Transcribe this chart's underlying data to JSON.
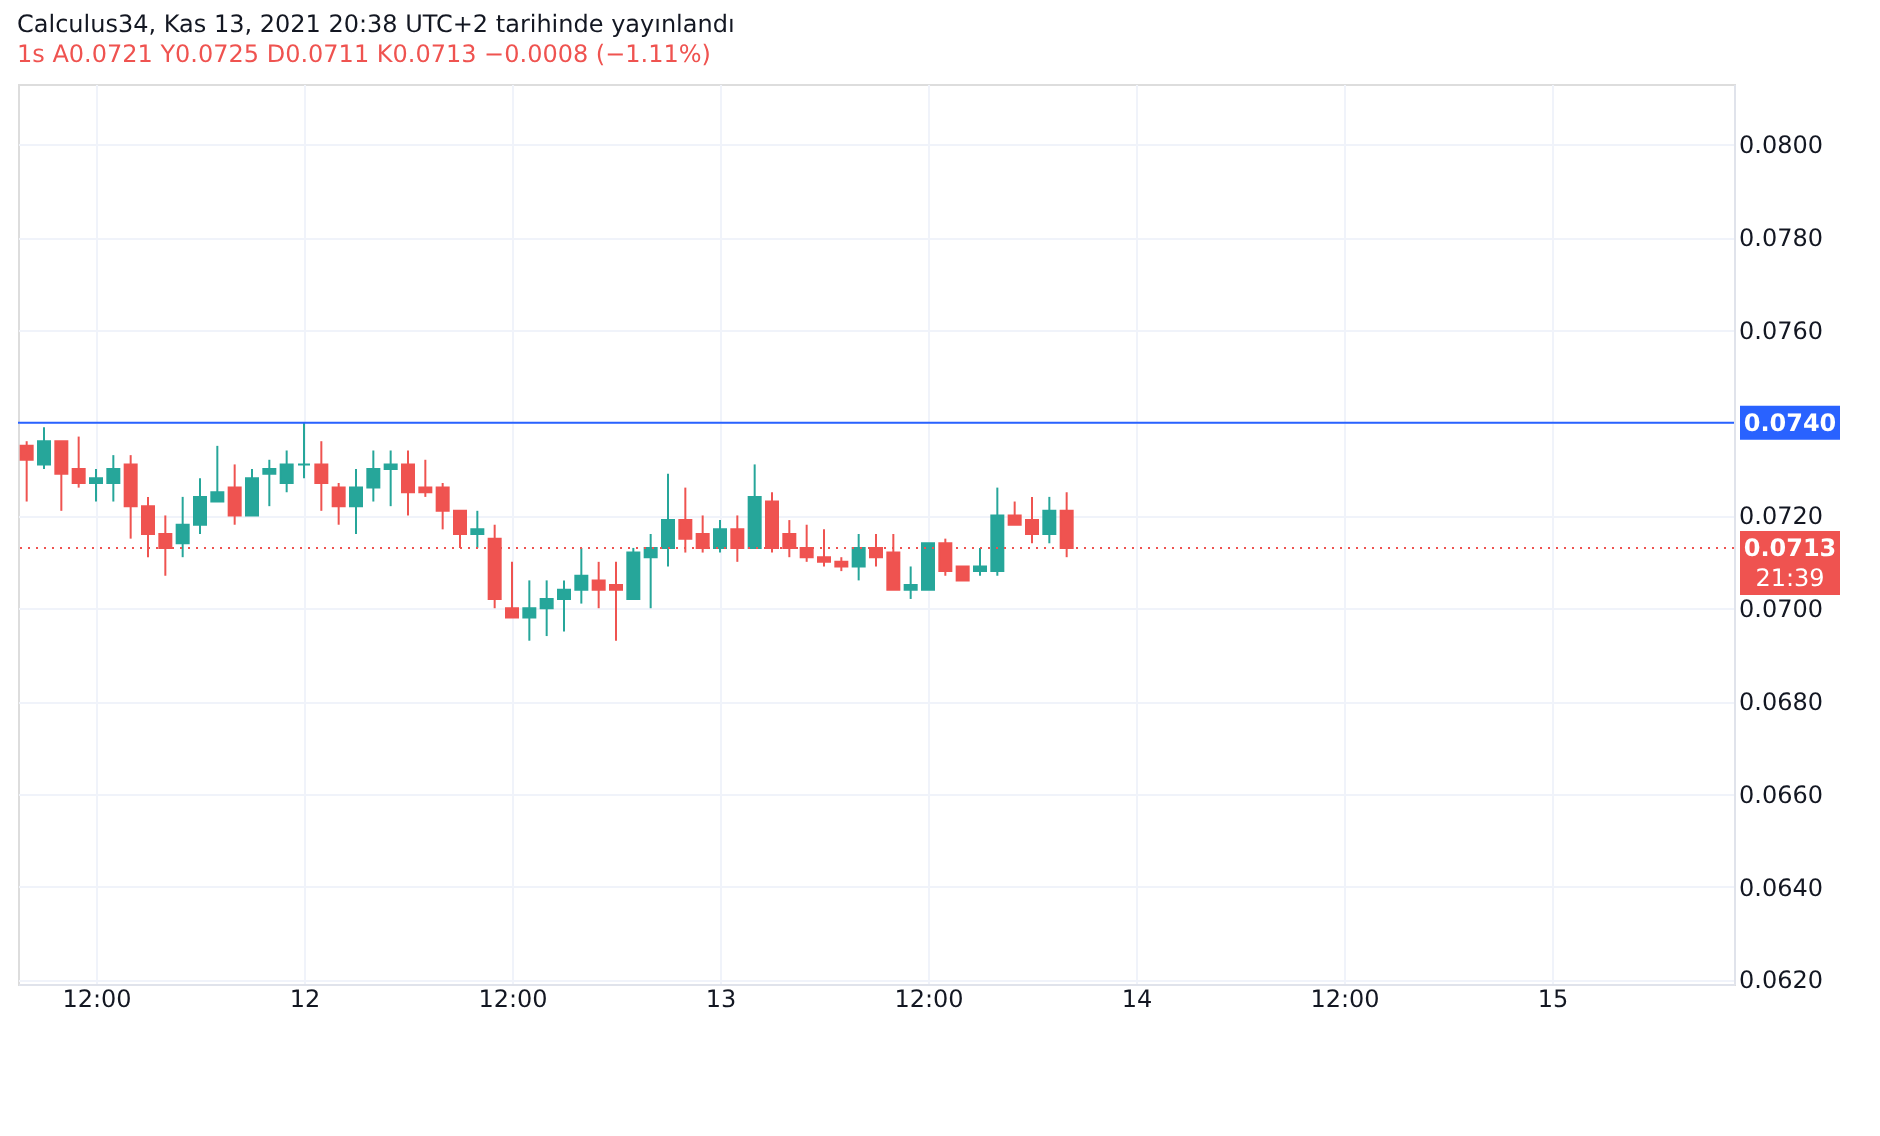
{
  "chart_data": {
    "type": "candlestick",
    "title": "Calculus34, Kas 13, 2021 20:38 UTC+2 tarihinde yayınlandı",
    "subtitle": "1s  A0.0721  Y0.0725  D0.0711  K0.0713  −0.0008 (−1.11%)",
    "x": [
      "2021-11-11T08:00",
      "2021-11-11T09:00",
      "2021-11-11T10:00",
      "2021-11-11T11:00",
      "2021-11-11T12:00",
      "2021-11-11T13:00",
      "2021-11-11T14:00",
      "2021-11-11T15:00",
      "2021-11-11T16:00",
      "2021-11-11T17:00",
      "2021-11-11T18:00",
      "2021-11-11T19:00",
      "2021-11-11T20:00",
      "2021-11-11T21:00",
      "2021-11-11T22:00",
      "2021-11-11T23:00",
      "2021-11-12T00:00",
      "2021-11-12T01:00",
      "2021-11-12T02:00",
      "2021-11-12T03:00",
      "2021-11-12T04:00",
      "2021-11-12T05:00",
      "2021-11-12T06:00",
      "2021-11-12T07:00",
      "2021-11-12T08:00",
      "2021-11-12T09:00",
      "2021-11-12T10:00",
      "2021-11-12T11:00",
      "2021-11-12T12:00",
      "2021-11-12T13:00",
      "2021-11-12T14:00",
      "2021-11-12T15:00",
      "2021-11-12T16:00",
      "2021-11-12T17:00",
      "2021-11-12T18:00",
      "2021-11-12T19:00",
      "2021-11-12T20:00",
      "2021-11-12T21:00",
      "2021-11-12T22:00",
      "2021-11-12T23:00",
      "2021-11-13T00:00",
      "2021-11-13T01:00",
      "2021-11-13T02:00",
      "2021-11-13T03:00",
      "2021-11-13T04:00",
      "2021-11-13T05:00",
      "2021-11-13T06:00",
      "2021-11-13T07:00",
      "2021-11-13T08:00",
      "2021-11-13T09:00",
      "2021-11-13T10:00",
      "2021-11-13T11:00",
      "2021-11-13T12:00",
      "2021-11-13T13:00",
      "2021-11-13T14:00",
      "2021-11-13T15:00",
      "2021-11-13T16:00",
      "2021-11-13T17:00",
      "2021-11-13T18:00",
      "2021-11-13T19:00",
      "2021-11-13T20:00"
    ],
    "ohlc": [
      [
        0.0735,
        0.0736,
        0.0723,
        0.0732
      ],
      [
        0.0731,
        0.0739,
        0.073,
        0.0736
      ],
      [
        0.0736,
        0.0736,
        0.0721,
        0.0729
      ],
      [
        0.073,
        0.0737,
        0.0726,
        0.0727
      ],
      [
        0.0727,
        0.073,
        0.0723,
        0.0728
      ],
      [
        0.0727,
        0.0733,
        0.0723,
        0.073
      ],
      [
        0.0731,
        0.0733,
        0.0715,
        0.0722
      ],
      [
        0.0722,
        0.0724,
        0.0711,
        0.0716
      ],
      [
        0.0716,
        0.072,
        0.0707,
        0.0713
      ],
      [
        0.0714,
        0.0724,
        0.0711,
        0.0718
      ],
      [
        0.0718,
        0.0728,
        0.0716,
        0.0724
      ],
      [
        0.0723,
        0.0735,
        0.0723,
        0.0725
      ],
      [
        0.0726,
        0.0731,
        0.0718,
        0.072
      ],
      [
        0.072,
        0.073,
        0.072,
        0.0728
      ],
      [
        0.0729,
        0.0732,
        0.0722,
        0.073
      ],
      [
        0.0727,
        0.0734,
        0.0725,
        0.0731
      ],
      [
        0.0731,
        0.074,
        0.0728,
        0.0731
      ],
      [
        0.0731,
        0.0736,
        0.0721,
        0.0727
      ],
      [
        0.0726,
        0.0727,
        0.0718,
        0.0722
      ],
      [
        0.0722,
        0.073,
        0.0716,
        0.0726
      ],
      [
        0.0726,
        0.0734,
        0.0723,
        0.073
      ],
      [
        0.073,
        0.0734,
        0.0722,
        0.0731
      ],
      [
        0.0731,
        0.0734,
        0.072,
        0.0725
      ],
      [
        0.0726,
        0.0732,
        0.0724,
        0.0725
      ],
      [
        0.0726,
        0.0727,
        0.0717,
        0.0721
      ],
      [
        0.0721,
        0.0721,
        0.0713,
        0.0716
      ],
      [
        0.0716,
        0.0721,
        0.0713,
        0.0717
      ],
      [
        0.0715,
        0.0718,
        0.07,
        0.0702
      ],
      [
        0.07,
        0.071,
        0.0698,
        0.0698
      ],
      [
        0.0698,
        0.0706,
        0.0693,
        0.07
      ],
      [
        0.07,
        0.0706,
        0.0694,
        0.0702
      ],
      [
        0.0702,
        0.0706,
        0.0695,
        0.0704
      ],
      [
        0.0704,
        0.0713,
        0.0701,
        0.0707
      ],
      [
        0.0706,
        0.071,
        0.07,
        0.0704
      ],
      [
        0.0705,
        0.071,
        0.0693,
        0.0704
      ],
      [
        0.0702,
        0.0713,
        0.0702,
        0.0712
      ],
      [
        0.0711,
        0.0716,
        0.07,
        0.0713
      ],
      [
        0.0713,
        0.0729,
        0.0709,
        0.0719
      ],
      [
        0.0719,
        0.0726,
        0.0712,
        0.0715
      ],
      [
        0.0716,
        0.072,
        0.0712,
        0.0713
      ],
      [
        0.0713,
        0.0719,
        0.0712,
        0.0717
      ],
      [
        0.0717,
        0.072,
        0.071,
        0.0713
      ],
      [
        0.0713,
        0.0731,
        0.0713,
        0.0724
      ],
      [
        0.0723,
        0.0725,
        0.0712,
        0.0713
      ],
      [
        0.0716,
        0.0719,
        0.0711,
        0.0713
      ],
      [
        0.0713,
        0.0718,
        0.071,
        0.0711
      ],
      [
        0.0711,
        0.0717,
        0.0709,
        0.071
      ],
      [
        0.071,
        0.0711,
        0.0708,
        0.0709
      ],
      [
        0.0709,
        0.0716,
        0.0706,
        0.0713
      ],
      [
        0.0713,
        0.0716,
        0.0709,
        0.0711
      ],
      [
        0.0712,
        0.0716,
        0.0704,
        0.0704
      ],
      [
        0.0704,
        0.0709,
        0.0702,
        0.0705
      ],
      [
        0.0704,
        0.0714,
        0.0704,
        0.0714
      ],
      [
        0.0714,
        0.0715,
        0.0707,
        0.0708
      ],
      [
        0.0709,
        0.0709,
        0.0706,
        0.0706
      ],
      [
        0.0708,
        0.0713,
        0.0707,
        0.0709
      ],
      [
        0.0708,
        0.0726,
        0.0707,
        0.072
      ],
      [
        0.072,
        0.0723,
        0.0718,
        0.0718
      ],
      [
        0.0719,
        0.0724,
        0.0714,
        0.0716
      ],
      [
        0.0716,
        0.0724,
        0.0714,
        0.0721
      ],
      [
        0.0721,
        0.0725,
        0.0711,
        0.0713
      ]
    ],
    "colors": [
      "#ef5350",
      "#26a69a",
      "#ef5350",
      "#ef5350",
      "#26a69a",
      "#26a69a",
      "#ef5350",
      "#ef5350",
      "#ef5350",
      "#26a69a",
      "#26a69a",
      "#26a69a",
      "#ef5350",
      "#26a69a",
      "#26a69a",
      "#26a69a",
      "#26a69a",
      "#ef5350",
      "#ef5350",
      "#26a69a",
      "#26a69a",
      "#26a69a",
      "#ef5350",
      "#ef5350",
      "#ef5350",
      "#ef5350",
      "#26a69a",
      "#ef5350",
      "#ef5350",
      "#26a69a",
      "#26a69a",
      "#26a69a",
      "#26a69a",
      "#ef5350",
      "#ef5350",
      "#26a69a",
      "#26a69a",
      "#26a69a",
      "#ef5350",
      "#ef5350",
      "#26a69a",
      "#ef5350",
      "#26a69a",
      "#ef5350",
      "#ef5350",
      "#ef5350",
      "#ef5350",
      "#ef5350",
      "#26a69a",
      "#ef5350",
      "#ef5350",
      "#26a69a",
      "#26a69a",
      "#ef5350",
      "#ef5350",
      "#26a69a",
      "#26a69a",
      "#ef5350",
      "#ef5350",
      "#26a69a",
      "#ef5350"
    ],
    "xlim": [
      "2021-11-11T07:30",
      "2021-11-15T10:30"
    ],
    "xticks": [
      {
        "value": "2021-11-11T12:00",
        "label": "12:00"
      },
      {
        "value": "2021-11-12T00:00",
        "label": "12"
      },
      {
        "value": "2021-11-12T12:00",
        "label": "12:00"
      },
      {
        "value": "2021-11-13T00:00",
        "label": "13"
      },
      {
        "value": "2021-11-13T12:00",
        "label": "12:00"
      },
      {
        "value": "2021-11-14T00:00",
        "label": "14"
      },
      {
        "value": "2021-11-14T12:00",
        "label": "12:00"
      },
      {
        "value": "2021-11-15T00:00",
        "label": "15"
      }
    ],
    "ylim": [
      0.0619,
      0.0813
    ],
    "yticks": [
      {
        "value": 0.062,
        "label": "0.0620"
      },
      {
        "value": 0.064,
        "label": "0.0640"
      },
      {
        "value": 0.066,
        "label": "0.0660"
      },
      {
        "value": 0.068,
        "label": "0.0680"
      },
      {
        "value": 0.07,
        "label": "0.0700"
      },
      {
        "value": 0.072,
        "label": "0.0720"
      },
      {
        "value": 0.074,
        "label": null
      },
      {
        "value": 0.076,
        "label": "0.0760"
      },
      {
        "value": 0.078,
        "label": "0.0780"
      },
      {
        "value": 0.08,
        "label": "0.0800"
      }
    ],
    "ref_lines": [
      {
        "axis": "y",
        "value": 0.074,
        "label": "0.0740",
        "color": "#2962ff",
        "line_style": "solid"
      },
      {
        "axis": "y",
        "value": 0.0713,
        "label": "0.0713",
        "color": "#ef5350",
        "line_style": "dotted"
      }
    ],
    "annotations": [
      "21:39"
    ],
    "grid": true
  }
}
